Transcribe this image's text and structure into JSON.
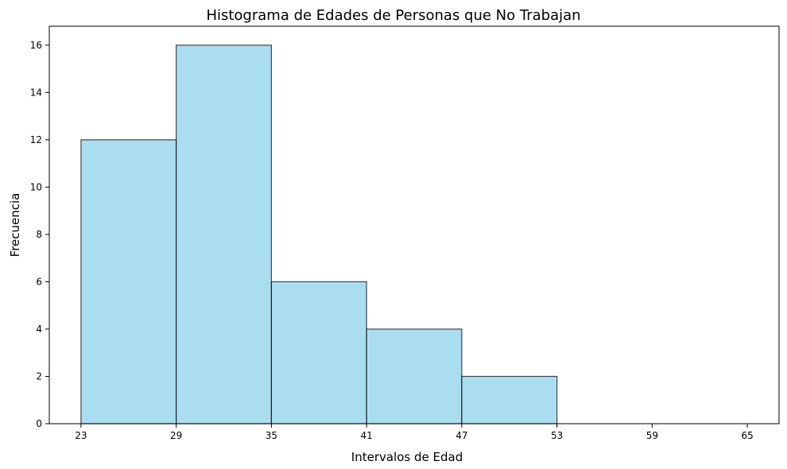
{
  "chart_data": {
    "type": "bar",
    "subtype": "histogram",
    "title": "Histograma de Edades de Personas que No Trabajan",
    "xlabel": "Intervalos de Edad",
    "ylabel": "Frecuencia",
    "bin_edges": [
      23,
      29,
      35,
      41,
      47,
      53,
      59,
      65
    ],
    "values": [
      12,
      16,
      6,
      4,
      2,
      0,
      0
    ],
    "x_ticks": [
      "23",
      "29",
      "35",
      "41",
      "47",
      "53",
      "59",
      "65"
    ],
    "y_ticks": [
      "0",
      "2",
      "4",
      "6",
      "8",
      "10",
      "12",
      "14",
      "16"
    ],
    "xlim": [
      21,
      67
    ],
    "ylim": [
      0,
      16.8
    ],
    "grid": false,
    "legend": "none",
    "colors": {
      "bar_fill": "#87ceeb",
      "bar_edge": "#000000",
      "bar_alpha": 0.7
    }
  }
}
